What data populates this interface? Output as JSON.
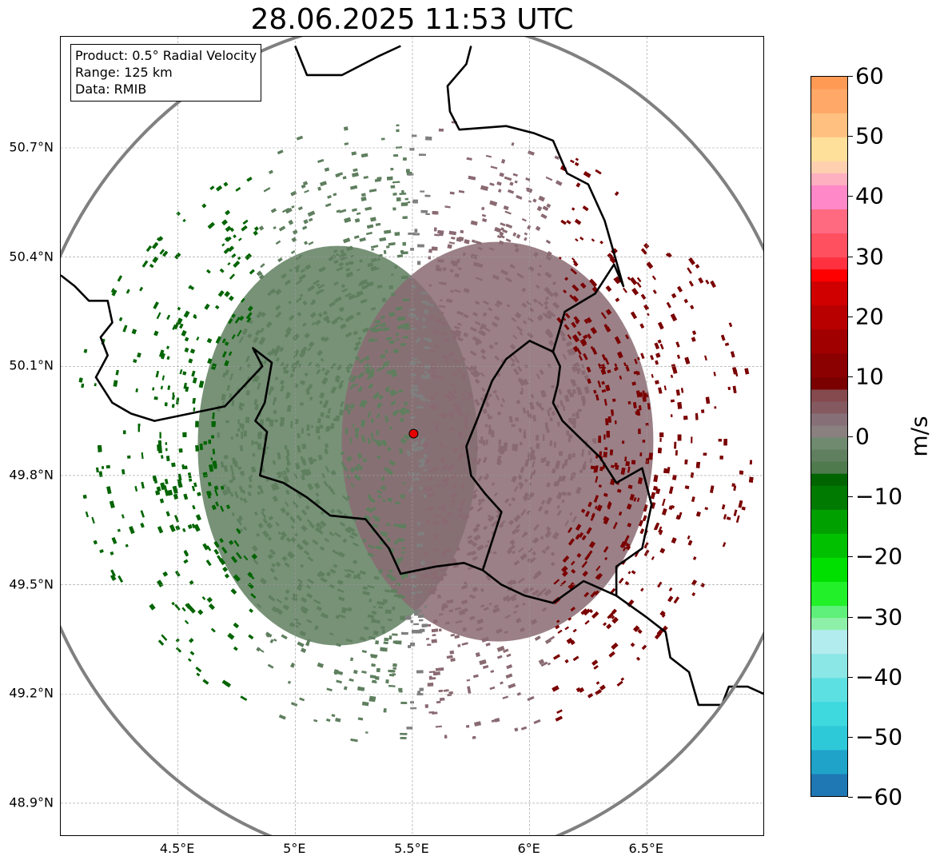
{
  "title": "28.06.2025 11:53 UTC",
  "info_box": {
    "product": "Product: 0.5° Radial Velocity",
    "range": "Range: 125 km",
    "source": "Data: RMIB"
  },
  "map": {
    "extent": {
      "lon_min": 4.0,
      "lon_max": 7.0,
      "lat_min": 48.8,
      "lat_max": 50.98
    },
    "lat_ticks": [
      {
        "value": 50.7,
        "label": "50.7°N"
      },
      {
        "value": 50.4,
        "label": "50.4°N"
      },
      {
        "value": 50.1,
        "label": "50.1°N"
      },
      {
        "value": 49.8,
        "label": "49.8°N"
      },
      {
        "value": 49.5,
        "label": "49.5°N"
      },
      {
        "value": 49.2,
        "label": "49.2°N"
      },
      {
        "value": 48.9,
        "label": "48.9°N"
      }
    ],
    "lon_ticks": [
      {
        "value": 4.5,
        "label": "4.5°E"
      },
      {
        "value": 5.0,
        "label": "5°E"
      },
      {
        "value": 5.5,
        "label": "5.5°E"
      },
      {
        "value": 6.0,
        "label": "6°E"
      },
      {
        "value": 6.5,
        "label": "6.5°E"
      }
    ],
    "gridlines": true,
    "radar_site": {
      "lon": 5.505,
      "lat": 49.915,
      "color": "#e60000"
    },
    "range_ring_km": 125,
    "range_ring_color": "#808080",
    "border_color": "#000000",
    "borders": [
      [
        [
          4.0,
          50.35
        ],
        [
          4.06,
          50.32
        ],
        [
          4.12,
          50.28
        ],
        [
          4.2,
          50.28
        ],
        [
          4.22,
          50.22
        ],
        [
          4.17,
          50.18
        ],
        [
          4.2,
          50.13
        ],
        [
          4.15,
          50.07
        ],
        [
          4.22,
          50.0
        ],
        [
          4.3,
          49.97
        ],
        [
          4.4,
          49.95
        ],
        [
          4.55,
          49.97
        ],
        [
          4.7,
          49.99
        ],
        [
          4.86,
          50.1
        ],
        [
          4.82,
          50.15
        ],
        [
          4.9,
          50.11
        ],
        [
          4.87,
          50.0
        ],
        [
          4.83,
          49.95
        ],
        [
          4.88,
          49.92
        ],
        [
          4.85,
          49.8
        ],
        [
          4.95,
          49.78
        ],
        [
          5.05,
          49.74
        ],
        [
          5.15,
          49.69
        ],
        [
          5.3,
          49.68
        ],
        [
          5.4,
          49.6
        ],
        [
          5.45,
          49.53
        ],
        [
          5.6,
          49.55
        ],
        [
          5.72,
          49.56
        ],
        [
          5.8,
          49.54
        ],
        [
          5.88,
          49.5
        ],
        [
          5.98,
          49.47
        ],
        [
          6.1,
          49.45
        ],
        [
          6.23,
          49.51
        ],
        [
          6.37,
          49.47
        ],
        [
          6.5,
          49.41
        ],
        [
          6.58,
          49.37
        ],
        [
          6.6,
          49.3
        ],
        [
          6.68,
          49.26
        ],
        [
          6.72,
          49.17
        ],
        [
          6.82,
          49.17
        ],
        [
          6.85,
          49.22
        ],
        [
          6.93,
          49.22
        ],
        [
          7.0,
          49.2
        ]
      ],
      [
        [
          5.8,
          49.54
        ],
        [
          5.88,
          49.7
        ],
        [
          5.81,
          49.75
        ],
        [
          5.75,
          49.8
        ],
        [
          5.73,
          49.88
        ],
        [
          5.78,
          49.96
        ],
        [
          5.84,
          50.06
        ],
        [
          5.9,
          50.12
        ],
        [
          6.0,
          50.17
        ],
        [
          6.1,
          50.14
        ],
        [
          6.15,
          50.25
        ],
        [
          6.28,
          50.3
        ],
        [
          6.36,
          50.38
        ],
        [
          6.4,
          50.32
        ],
        [
          6.32,
          50.5
        ],
        [
          6.25,
          50.6
        ],
        [
          6.16,
          50.63
        ],
        [
          6.1,
          50.72
        ],
        [
          6.02,
          50.74
        ],
        [
          5.9,
          50.76
        ],
        [
          5.7,
          50.75
        ],
        [
          5.66,
          50.8
        ],
        [
          5.65,
          50.87
        ],
        [
          5.73,
          50.93
        ],
        [
          5.75,
          50.98
        ]
      ],
      [
        [
          6.1,
          50.14
        ],
        [
          6.13,
          50.1
        ],
        [
          6.12,
          50.05
        ],
        [
          6.1,
          50.0
        ],
        [
          6.14,
          49.95
        ],
        [
          6.22,
          49.9
        ],
        [
          6.3,
          49.85
        ],
        [
          6.37,
          49.78
        ],
        [
          6.48,
          49.82
        ],
        [
          6.52,
          49.72
        ],
        [
          6.48,
          49.6
        ],
        [
          6.37,
          49.55
        ],
        [
          6.37,
          49.47
        ]
      ],
      [
        [
          5.0,
          50.98
        ],
        [
          5.05,
          50.9
        ],
        [
          5.2,
          50.9
        ],
        [
          5.35,
          50.95
        ],
        [
          5.45,
          50.98
        ]
      ]
    ]
  },
  "velocity_field": {
    "description_levels_m_s": {
      "approaching_max": -20,
      "receding_max": 15
    },
    "colors": {
      "approaching_strong": "#006400",
      "approaching_weak": "#5f7f5f",
      "near_zero": "#7f7f7f",
      "receding_weak": "#8a6a72",
      "receding_strong": "#7a0000"
    }
  },
  "colorbar": {
    "label": "m/s",
    "min": -60,
    "max": 60,
    "ticks": [
      {
        "value": 60,
        "label": "60"
      },
      {
        "value": 50,
        "label": "50"
      },
      {
        "value": 40,
        "label": "40"
      },
      {
        "value": 30,
        "label": "30"
      },
      {
        "value": 20,
        "label": "20"
      },
      {
        "value": 10,
        "label": "10"
      },
      {
        "value": 0,
        "label": "0"
      },
      {
        "value": -10,
        "label": "−10"
      },
      {
        "value": -20,
        "label": "−20"
      },
      {
        "value": -30,
        "label": "−30"
      },
      {
        "value": -40,
        "label": "−40"
      },
      {
        "value": -50,
        "label": "−50"
      },
      {
        "value": -60,
        "label": "−60"
      }
    ],
    "segments": [
      {
        "from": -60,
        "to": -56,
        "color": "#1f77b4"
      },
      {
        "from": -56,
        "to": -52,
        "color": "#1fa3c9"
      },
      {
        "from": -52,
        "to": -48,
        "color": "#2ec9d9"
      },
      {
        "from": -48,
        "to": -44,
        "color": "#3ed8df"
      },
      {
        "from": -44,
        "to": -40,
        "color": "#5de0e2"
      },
      {
        "from": -40,
        "to": -36,
        "color": "#8be6e6"
      },
      {
        "from": -36,
        "to": -32,
        "color": "#b3ecee"
      },
      {
        "from": -32,
        "to": -30,
        "color": "#8ef0a8"
      },
      {
        "from": -30,
        "to": -28,
        "color": "#5ef07a"
      },
      {
        "from": -28,
        "to": -24,
        "color": "#22f028"
      },
      {
        "from": -24,
        "to": -20,
        "color": "#00e000"
      },
      {
        "from": -20,
        "to": -16,
        "color": "#00c000"
      },
      {
        "from": -16,
        "to": -12,
        "color": "#00a000"
      },
      {
        "from": -12,
        "to": -8,
        "color": "#007a00"
      },
      {
        "from": -8,
        "to": -6,
        "color": "#006400"
      },
      {
        "from": -6,
        "to": -4,
        "color": "#4e7a4e"
      },
      {
        "from": -4,
        "to": -2,
        "color": "#5f7f5f"
      },
      {
        "from": -2,
        "to": 0,
        "color": "#6f8a6f"
      },
      {
        "from": 0,
        "to": 2,
        "color": "#8a8080"
      },
      {
        "from": 2,
        "to": 4,
        "color": "#876f78"
      },
      {
        "from": 4,
        "to": 6,
        "color": "#845a60"
      },
      {
        "from": 6,
        "to": 8,
        "color": "#844a4e"
      },
      {
        "from": 8,
        "to": 10,
        "color": "#7a0000"
      },
      {
        "from": 10,
        "to": 14,
        "color": "#8b0000"
      },
      {
        "from": 14,
        "to": 18,
        "color": "#a00000"
      },
      {
        "from": 18,
        "to": 22,
        "color": "#b80000"
      },
      {
        "from": 22,
        "to": 26,
        "color": "#d00000"
      },
      {
        "from": 26,
        "to": 28,
        "color": "#ff0000"
      },
      {
        "from": 28,
        "to": 30,
        "color": "#ff3040"
      },
      {
        "from": 30,
        "to": 34,
        "color": "#ff5060"
      },
      {
        "from": 34,
        "to": 38,
        "color": "#ff6a80"
      },
      {
        "from": 38,
        "to": 42,
        "color": "#ff88c8"
      },
      {
        "from": 42,
        "to": 44,
        "color": "#ffb0c0"
      },
      {
        "from": 44,
        "to": 46,
        "color": "#ffd0b0"
      },
      {
        "from": 46,
        "to": 50,
        "color": "#ffe09a"
      },
      {
        "from": 50,
        "to": 54,
        "color": "#ffc080"
      },
      {
        "from": 54,
        "to": 58,
        "color": "#ffa868"
      },
      {
        "from": 58,
        "to": 60,
        "color": "#ff9a55"
      }
    ]
  }
}
